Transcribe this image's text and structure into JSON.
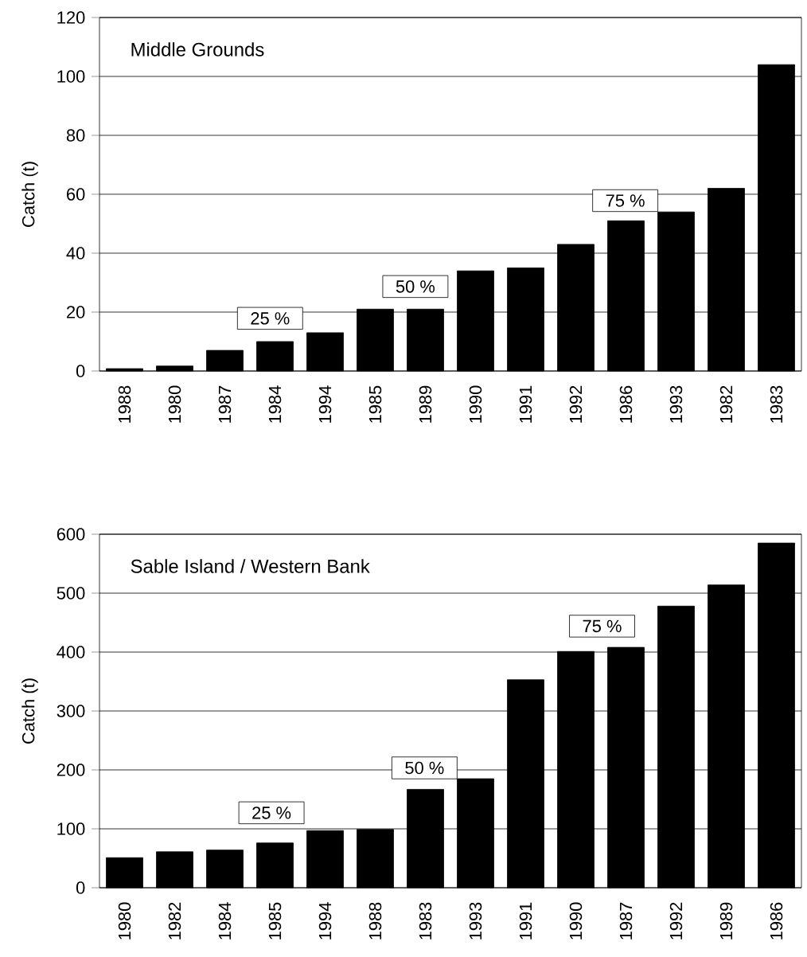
{
  "chart_data": [
    {
      "type": "bar",
      "title": "Middle Grounds",
      "ylabel": "Catch (t)",
      "categories": [
        "1988",
        "1980",
        "1987",
        "1984",
        "1994",
        "1985",
        "1989",
        "1990",
        "1991",
        "1992",
        "1986",
        "1993",
        "1982",
        "1983"
      ],
      "values": [
        0.8,
        1.7,
        7,
        10,
        13,
        21,
        21,
        34,
        35,
        43,
        51,
        54,
        62,
        104
      ],
      "color": "#000000",
      "ylim": [
        0,
        120
      ],
      "yticks": [
        0,
        20,
        40,
        60,
        80,
        100,
        120
      ],
      "grid": "y",
      "annotations": [
        "25 %",
        "50 %",
        "75 %"
      ]
    },
    {
      "type": "bar",
      "title": "Sable Island / Western Bank",
      "ylabel": "Catch (t)",
      "categories": [
        "1980",
        "1982",
        "1984",
        "1985",
        "1994",
        "1988",
        "1983",
        "1993",
        "1991",
        "1990",
        "1987",
        "1992",
        "1989",
        "1986"
      ],
      "values": [
        51,
        61,
        64,
        76,
        97,
        99,
        167,
        185,
        353,
        401,
        408,
        478,
        514,
        585
      ],
      "color": "#000000",
      "ylim": [
        0,
        600
      ],
      "yticks": [
        0,
        100,
        200,
        300,
        400,
        500,
        600
      ],
      "grid": "y",
      "annotations": [
        "25 %",
        "50 %",
        "75 %"
      ]
    }
  ]
}
